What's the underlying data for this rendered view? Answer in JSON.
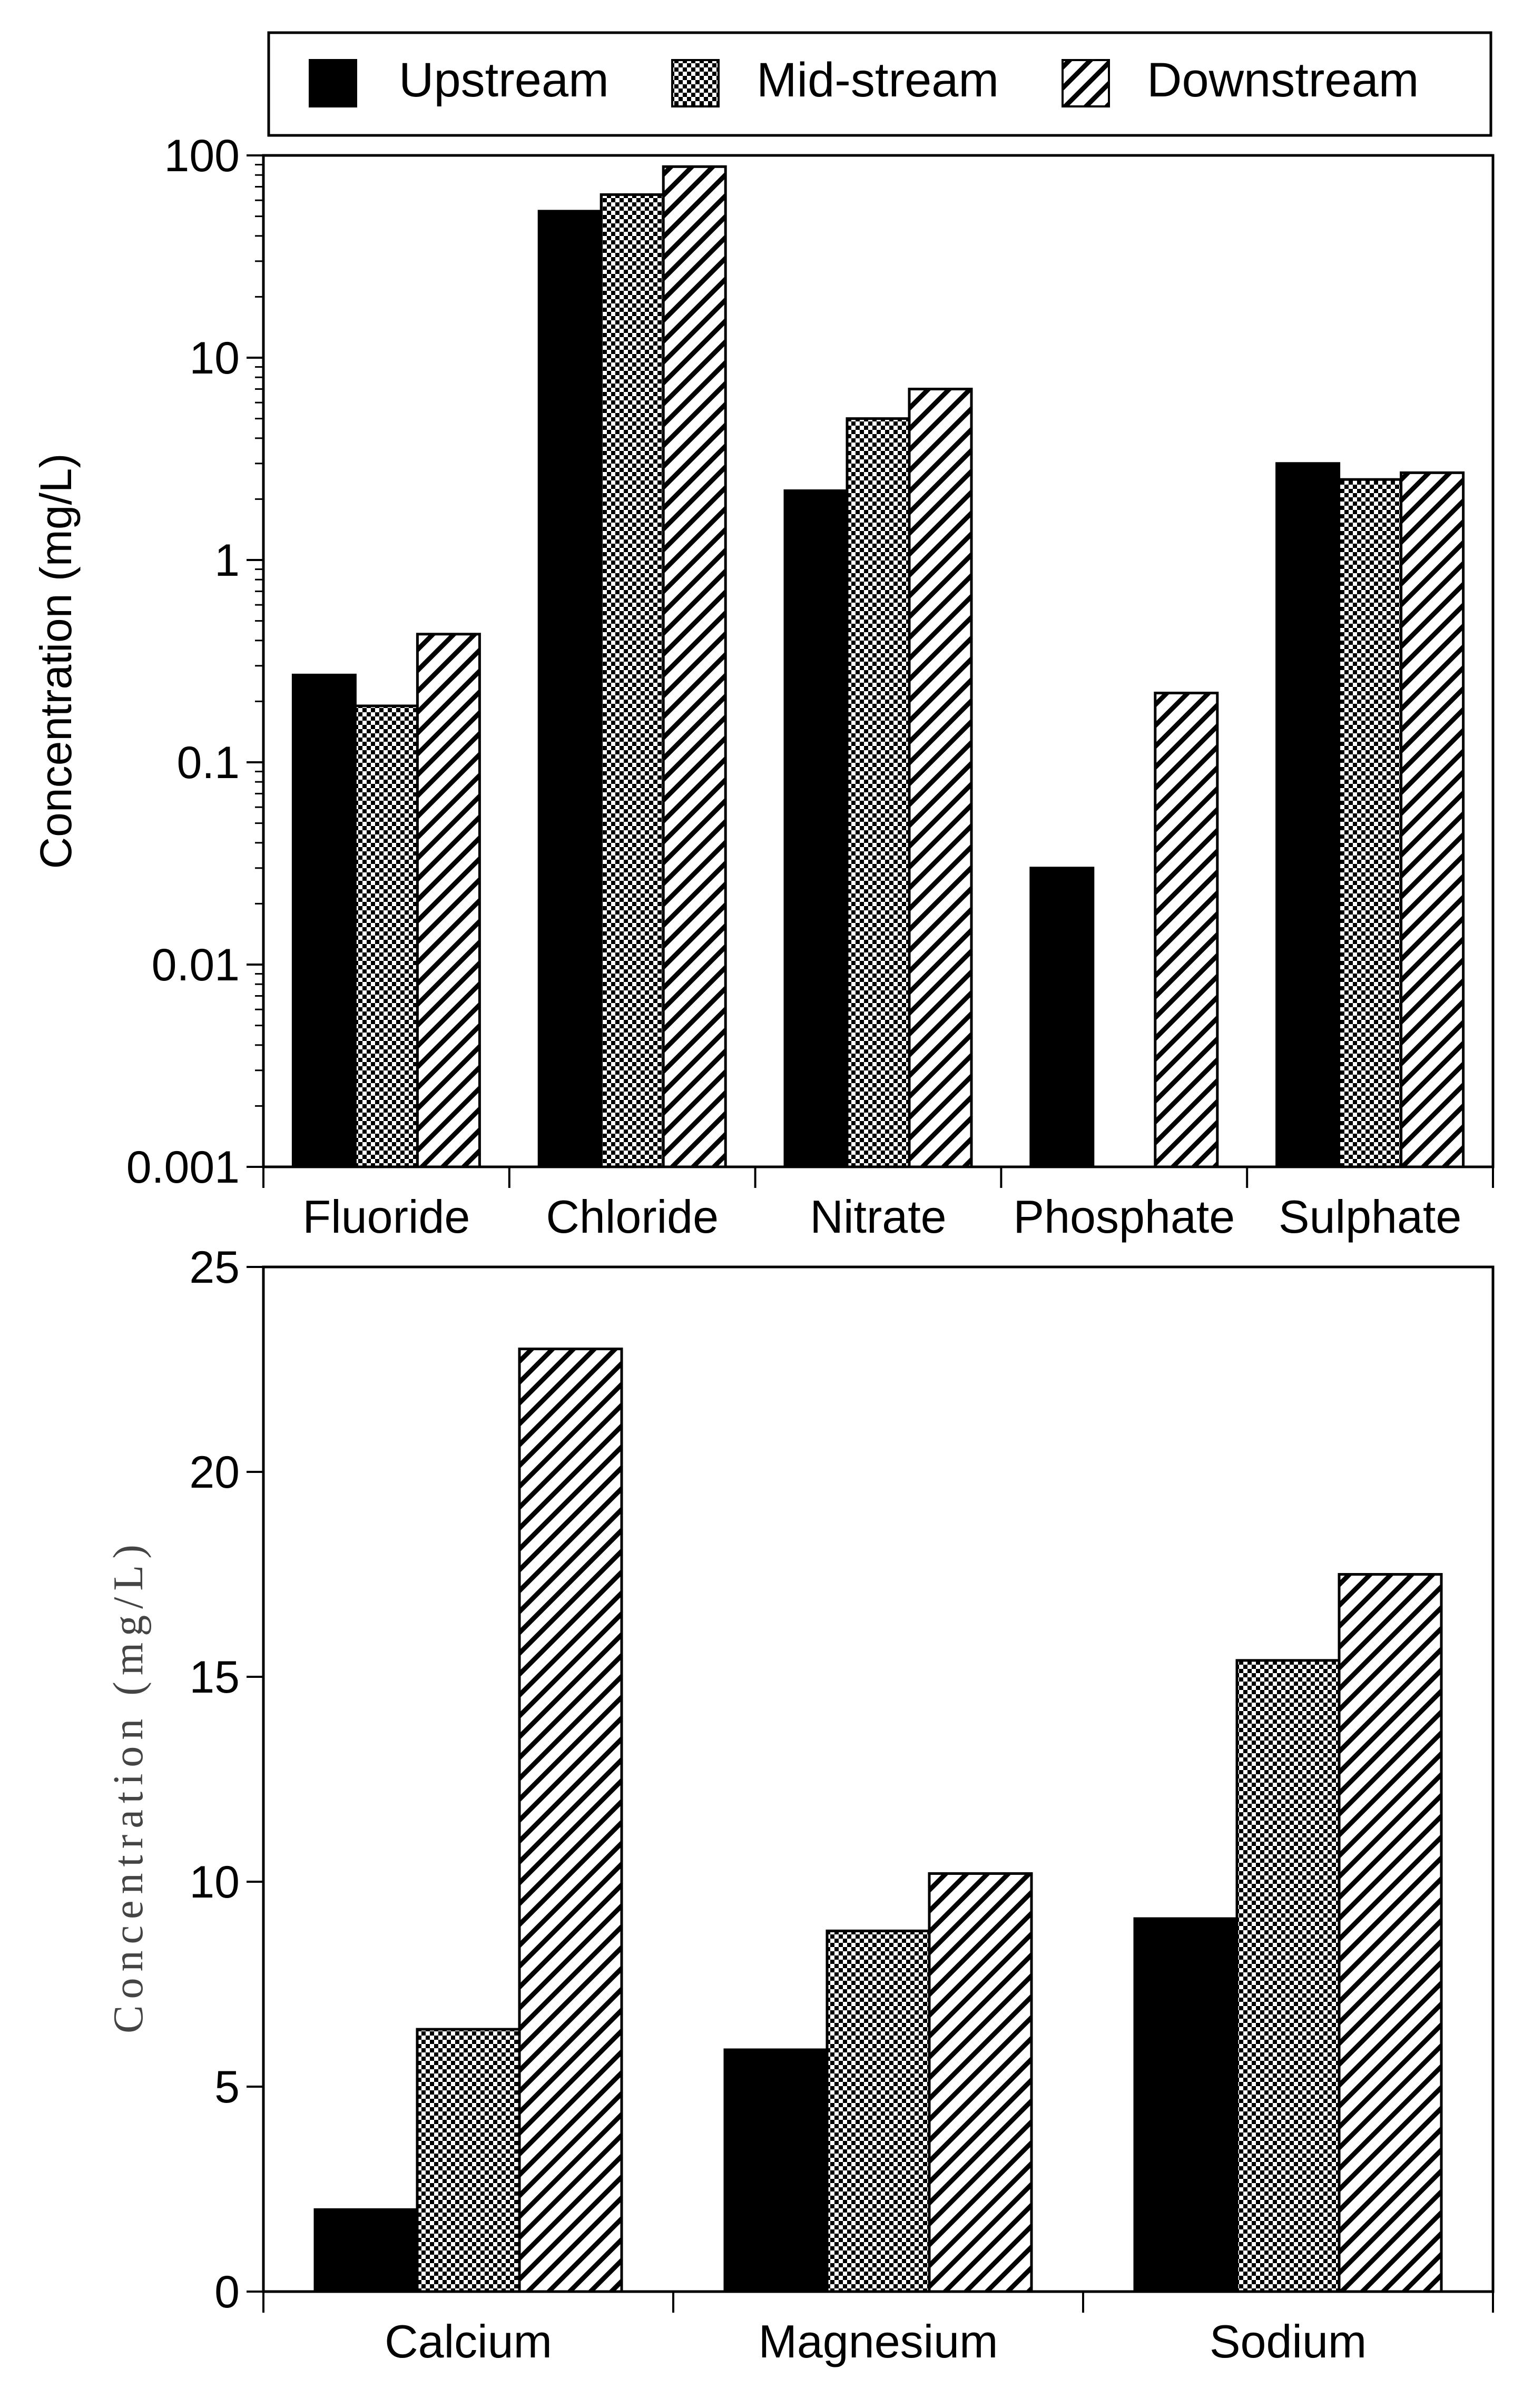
{
  "legend": {
    "items": [
      {
        "label": "Upstream",
        "pattern": "solid"
      },
      {
        "label": "Mid-stream",
        "pattern": "checker"
      },
      {
        "label": "Downstream",
        "pattern": "diagonal"
      }
    ]
  },
  "chart_data": [
    {
      "type": "bar",
      "scale": "log",
      "title": "",
      "xlabel": "",
      "ylabel": "Concentration (mg/L)",
      "categories": [
        "Fluoride",
        "Chloride",
        "Nitrate",
        "Phosphate",
        "Sulphate"
      ],
      "series": [
        {
          "name": "Upstream",
          "values": [
            0.27,
            53,
            2.2,
            0.03,
            3.0
          ]
        },
        {
          "name": "Mid-stream",
          "values": [
            0.19,
            64,
            5.0,
            null,
            2.5
          ]
        },
        {
          "name": "Downstream",
          "values": [
            0.43,
            88,
            7.0,
            0.22,
            2.7
          ]
        }
      ],
      "ylim": [
        0.001,
        100
      ],
      "yticks": [
        "0.001",
        "0.01",
        "0.1",
        "1",
        "10",
        "100"
      ],
      "grid": false
    },
    {
      "type": "bar",
      "scale": "linear",
      "title": "",
      "xlabel": "",
      "ylabel": "Concentration (mg/L)",
      "categories": [
        "Calcium",
        "Magnesium",
        "Sodium"
      ],
      "series": [
        {
          "name": "Upstream",
          "values": [
            2.0,
            5.9,
            9.1
          ]
        },
        {
          "name": "Mid-stream",
          "values": [
            6.4,
            8.8,
            15.4
          ]
        },
        {
          "name": "Downstream",
          "values": [
            23.0,
            10.2,
            17.5
          ]
        }
      ],
      "ylim": [
        0,
        25
      ],
      "yticks": [
        "0",
        "5",
        "10",
        "15",
        "20",
        "25"
      ],
      "grid": false
    }
  ]
}
